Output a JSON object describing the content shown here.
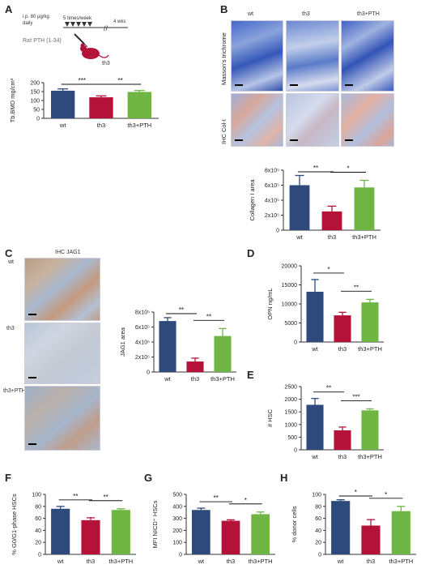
{
  "colors": {
    "wt": "#2e4a7d",
    "th3": "#b5123a",
    "th3_pth": "#6fb544",
    "axis": "#333333"
  },
  "panels": {
    "A": {
      "letter": "A",
      "schematic": {
        "dose": "i.p. 80 µg/kg",
        "daily": "daily",
        "frequency": "5 times/week",
        "duration": "4 wks",
        "drug": "Rat PTH (1-34)",
        "mouse": "th3",
        "break_mark": "//"
      }
    },
    "B": {
      "letter": "B",
      "columns": [
        "wt",
        "th3",
        "th3+PTH"
      ],
      "rows": [
        "Masson's trichrome",
        "IHC Col-I"
      ]
    },
    "C": {
      "letter": "C",
      "stain": "IHC JAG1",
      "rows": [
        "wt",
        "th3",
        "th3+PTH"
      ]
    },
    "D": {
      "letter": "D"
    },
    "E": {
      "letter": "E"
    },
    "F": {
      "letter": "F"
    },
    "G": {
      "letter": "G"
    },
    "H": {
      "letter": "H"
    }
  },
  "chart_data": [
    {
      "id": "A",
      "type": "bar",
      "categories": [
        "wt",
        "th3",
        "th3+PTH"
      ],
      "values": [
        155,
        118,
        148
      ],
      "errors": [
        10,
        8,
        8
      ],
      "ylabel": "Tb.BMD mg/cm³",
      "ylim": [
        0,
        200
      ],
      "yticks": [
        "0",
        "50",
        "100",
        "150",
        "200"
      ],
      "significance": [
        {
          "from": 0,
          "to": 1,
          "label": "***"
        },
        {
          "from": 1,
          "to": 2,
          "label": "**"
        }
      ]
    },
    {
      "id": "B",
      "type": "bar",
      "categories": [
        "wt",
        "th3",
        "th3+PTH"
      ],
      "values": [
        600000,
        250000,
        570000
      ],
      "errors": [
        130000,
        70000,
        95000
      ],
      "ylabel": "Collagen I area",
      "ylim": [
        0,
        800000
      ],
      "yticks": [
        "0",
        "2x10⁵",
        "4x10⁵",
        "6x10⁵",
        "8x10⁵"
      ],
      "significance": [
        {
          "from": 0,
          "to": 1,
          "label": "**"
        },
        {
          "from": 1,
          "to": 2,
          "label": "*"
        }
      ]
    },
    {
      "id": "C",
      "type": "bar",
      "categories": [
        "wt",
        "th3",
        "th3+PTH"
      ],
      "values": [
        680000,
        140000,
        480000
      ],
      "errors": [
        45000,
        45000,
        100000
      ],
      "ylabel": "JAG1 area",
      "ylim": [
        0,
        800000
      ],
      "yticks": [
        "0",
        "2x10⁵",
        "4x10⁵",
        "6x10⁵",
        "8x10⁵"
      ],
      "significance": [
        {
          "from": 0,
          "to": 1,
          "label": "**"
        },
        {
          "from": 1,
          "to": 2,
          "label": "**"
        }
      ]
    },
    {
      "id": "D",
      "type": "bar",
      "categories": [
        "wt",
        "th3",
        "th3+PTH"
      ],
      "values": [
        13200,
        7000,
        10400
      ],
      "errors": [
        3200,
        800,
        800
      ],
      "ylabel": "OPN ng/mL",
      "ylim": [
        0,
        20000
      ],
      "yticks": [
        "0",
        "5000",
        "10000",
        "15000",
        "20000"
      ],
      "significance": [
        {
          "from": 0,
          "to": 1,
          "label": "*"
        },
        {
          "from": 1,
          "to": 2,
          "label": "**"
        }
      ]
    },
    {
      "id": "E",
      "type": "bar",
      "categories": [
        "wt",
        "th3",
        "th3+PTH"
      ],
      "values": [
        1780,
        770,
        1560
      ],
      "errors": [
        250,
        130,
        60
      ],
      "ylabel": "# HSC",
      "ylim": [
        0,
        2500
      ],
      "yticks": [
        "0",
        "500",
        "1000",
        "1500",
        "2000",
        "2500"
      ],
      "significance": [
        {
          "from": 0,
          "to": 1,
          "label": "**"
        },
        {
          "from": 1,
          "to": 2,
          "label": "***"
        }
      ]
    },
    {
      "id": "F",
      "type": "bar",
      "categories": [
        "wt",
        "th3",
        "th3+PTH"
      ],
      "values": [
        76,
        57,
        74
      ],
      "errors": [
        4,
        4,
        2
      ],
      "ylabel": "% G0/G1-phase HSCs",
      "ylim": [
        0,
        100
      ],
      "yticks": [
        "0",
        "20",
        "40",
        "60",
        "80",
        "100"
      ],
      "significance": [
        {
          "from": 0,
          "to": 1,
          "label": "**"
        },
        {
          "from": 1,
          "to": 2,
          "label": "**"
        }
      ]
    },
    {
      "id": "G",
      "type": "bar",
      "categories": [
        "wt",
        "th3",
        "th3+PTH"
      ],
      "values": [
        370,
        280,
        335
      ],
      "errors": [
        15,
        8,
        18
      ],
      "ylabel": "MFI NICD⁺ HSCs",
      "ylim": [
        0,
        500
      ],
      "yticks": [
        "0",
        "100",
        "200",
        "300",
        "400",
        "500"
      ],
      "significance": [
        {
          "from": 0,
          "to": 1,
          "label": "**"
        },
        {
          "from": 1,
          "to": 2,
          "label": "*"
        }
      ]
    },
    {
      "id": "H",
      "type": "bar",
      "categories": [
        "wt",
        "th3",
        "th3+PTH"
      ],
      "values": [
        89,
        48,
        72
      ],
      "errors": [
        2,
        10,
        8
      ],
      "ylabel": "% donor cells",
      "ylim": [
        0,
        100
      ],
      "yticks": [
        "0",
        "20",
        "40",
        "60",
        "80",
        "100"
      ],
      "significance": [
        {
          "from": 0,
          "to": 1,
          "label": "*"
        },
        {
          "from": 1,
          "to": 2,
          "label": "*"
        }
      ]
    }
  ]
}
